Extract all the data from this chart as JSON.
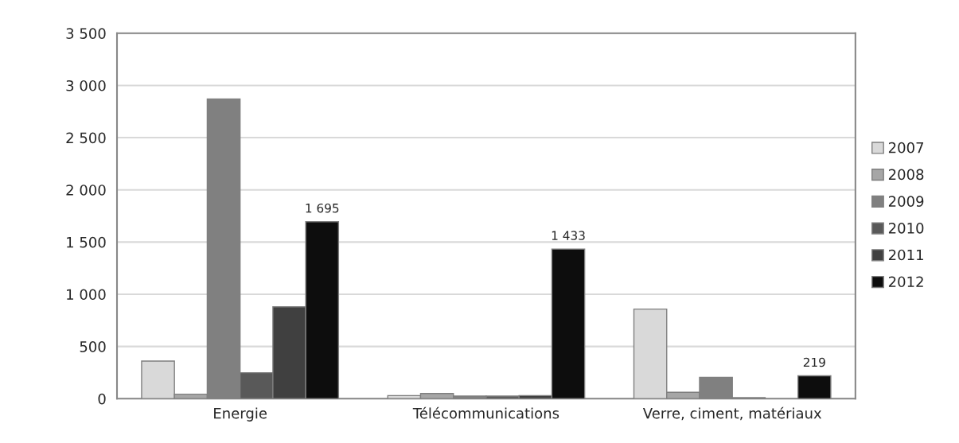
{
  "chart_data": {
    "type": "bar",
    "categories": [
      "Energie",
      "Télécommunications",
      "Verre, ciment, matériaux"
    ],
    "series": [
      {
        "name": "2007",
        "color": "#d9d9d9",
        "values": [
          360,
          30,
          858
        ]
      },
      {
        "name": "2008",
        "color": "#a6a6a6",
        "values": [
          43,
          50,
          61
        ]
      },
      {
        "name": "2009",
        "color": "#808080",
        "values": [
          2870,
          25,
          205
        ]
      },
      {
        "name": "2010",
        "color": "#595959",
        "values": [
          249,
          25,
          10
        ]
      },
      {
        "name": "2011",
        "color": "#404040",
        "values": [
          880,
          30,
          null
        ]
      },
      {
        "name": "2012",
        "color": "#0d0d0d",
        "values": [
          1695,
          1433,
          219
        ],
        "value_labels": [
          "1 695",
          "1 433",
          "219"
        ]
      }
    ],
    "ylim": [
      0,
      3500
    ],
    "yticks": [
      0,
      {
        "value": 500,
        "label": "500"
      },
      {
        "value": 1000,
        "label": "1 000"
      },
      {
        "value": 1500,
        "label": "1 500"
      },
      {
        "value": 2000,
        "label": "2 000"
      },
      {
        "value": 2500,
        "label": "2 500"
      },
      {
        "value": 3000,
        "label": "3 000"
      },
      {
        "value": 3500,
        "label": "3 500"
      }
    ],
    "grid": "y",
    "legend": "right"
  }
}
